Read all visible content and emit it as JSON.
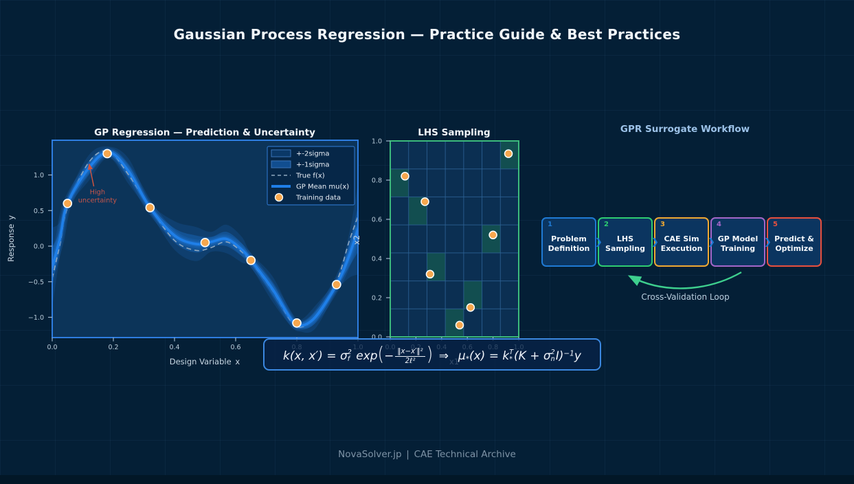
{
  "page": {
    "title": "Gaussian Process Regression — Practice Guide & Best Practices",
    "footer": "NovaSolver.jp | CAE Technical Archive",
    "background_color": "#041f36",
    "accent_color": "#1f7fe8"
  },
  "chart_data": [
    {
      "id": "gp_regression",
      "type": "line",
      "title": "GP Regression — Prediction & Uncertainty",
      "xlabel": "Design Variable x",
      "ylabel": "Response y",
      "xlim": [
        0.0,
        1.0
      ],
      "ylim": [
        -1.27,
        1.49
      ],
      "x_ticks": [
        0.0,
        0.2,
        0.4,
        0.6,
        0.8,
        1.0
      ],
      "y_ticks": [
        1.0,
        0.5,
        0.0,
        -0.5,
        -1.0
      ],
      "grid": false,
      "legend_position": "upper right",
      "legend": [
        "+-2sigma",
        "+-1sigma",
        "True f(x)",
        "GP Mean mu(x)",
        "Training data"
      ],
      "annotation": {
        "text_line1": "High",
        "text_line2": "uncertainty",
        "text_x": 0.148,
        "text_y": 0.73,
        "arrow_from": [
          0.136,
          0.84
        ],
        "arrow_to": [
          0.121,
          1.15
        ],
        "color": "#c4554a",
        "arrow_color": "#d4543c"
      },
      "x": [
        0.0,
        0.025,
        0.05,
        0.12,
        0.185,
        0.25,
        0.32,
        0.4,
        0.47,
        0.52,
        0.57,
        0.62,
        0.65,
        0.72,
        0.78,
        0.81,
        0.86,
        0.93,
        0.97,
        1.0
      ],
      "mean": [
        -0.3,
        0.1,
        0.6,
        1.1,
        1.32,
        1.05,
        0.54,
        0.15,
        0.03,
        0.06,
        0.1,
        -0.05,
        -0.2,
        -0.6,
        -1.02,
        -1.12,
        -1.0,
        -0.54,
        -0.15,
        0.24
      ],
      "true_fx": [
        -0.45,
        0.02,
        0.55,
        1.18,
        1.33,
        1.0,
        0.54,
        0.08,
        -0.06,
        -0.02,
        0.06,
        -0.08,
        -0.22,
        -0.62,
        -1.05,
        -1.14,
        -1.0,
        -0.5,
        0.05,
        0.42
      ],
      "sigma1": [
        0.28,
        0.12,
        0.05,
        0.09,
        0.04,
        0.09,
        0.04,
        0.1,
        0.12,
        0.07,
        0.1,
        0.09,
        0.05,
        0.09,
        0.05,
        0.04,
        0.08,
        0.05,
        0.15,
        0.32
      ],
      "training_points": [
        [
          0.05,
          0.6
        ],
        [
          0.18,
          1.3
        ],
        [
          0.32,
          0.54
        ],
        [
          0.5,
          0.05
        ],
        [
          0.65,
          -0.2
        ],
        [
          0.8,
          -1.08
        ],
        [
          0.93,
          -0.54
        ]
      ],
      "colors": {
        "mean": "#1f7fe8",
        "true_fx": "#8fa8c0",
        "band": "#1f7fe8",
        "points_fill": "#f7a74e",
        "points_edge": "#ffffff",
        "plot_bg": "#0c3459",
        "border": "#2e7de0"
      }
    },
    {
      "id": "lhs_sampling",
      "type": "scatter",
      "title": "LHS Sampling",
      "xlabel": "x1",
      "ylabel": "x2",
      "xlim": [
        0.0,
        1.0
      ],
      "ylim": [
        0.0,
        1.0
      ],
      "x_ticks": [
        0.0,
        0.2,
        0.4,
        0.6,
        0.8,
        1.0
      ],
      "y_ticks": [
        0.0,
        0.2,
        0.4,
        0.6,
        0.8,
        1.0
      ],
      "grid_divisions": 7,
      "points": [
        [
          0.115,
          0.82
        ],
        [
          0.27,
          0.69
        ],
        [
          0.31,
          0.32
        ],
        [
          0.54,
          0.06
        ],
        [
          0.625,
          0.15
        ],
        [
          0.8,
          0.52
        ],
        [
          0.92,
          0.935
        ]
      ],
      "colors": {
        "border": "#3cba7c",
        "grid": "#2d6295",
        "cell_highlight": "#135150",
        "plot_bg": "#0b2f52",
        "points_fill": "#f7a74e",
        "points_edge": "#ffffff"
      }
    }
  ],
  "workflow": {
    "title": "GPR Surrogate Workflow",
    "steps": [
      {
        "num": "1",
        "label_line1": "Problem",
        "label_line2": "Definition",
        "color": "#1f7ad4"
      },
      {
        "num": "2",
        "label_line1": "LHS",
        "label_line2": "Sampling",
        "color": "#2ecc71"
      },
      {
        "num": "3",
        "label_line1": "CAE Sim",
        "label_line2": "Execution",
        "color": "#f0a832"
      },
      {
        "num": "4",
        "label_line1": "GP Model",
        "label_line2": "Training",
        "color": "#a366c9"
      },
      {
        "num": "5",
        "label_line1": "Predict &",
        "label_line2": "Optimize",
        "color": "#e8503e"
      }
    ],
    "arrow_color": "#1f7ad4",
    "loop_label": "Cross-Validation Loop",
    "loop_color": "#3ecf8e"
  },
  "formula": {
    "segments": [
      {
        "t": "k(x, x′) = σ"
      },
      {
        "sup": "2",
        "sub": "f"
      },
      {
        "t": " exp"
      },
      {
        "big": "("
      },
      {
        "t": "−"
      },
      {
        "frac": [
          "‖x−x′‖²",
          "2ℓ²"
        ]
      },
      {
        "big": ")"
      },
      {
        "t": " ⇒  μ"
      },
      {
        "t": "*",
        "pos": "sub"
      },
      {
        "t": "(x) = k"
      },
      {
        "sup": "T",
        "sub": "*"
      },
      {
        "t": "(K + σ"
      },
      {
        "sup": "2",
        "sub": "n"
      },
      {
        "t": "I)"
      },
      {
        "t": "−1",
        "pos": "sup"
      },
      {
        "t": "y"
      }
    ]
  }
}
